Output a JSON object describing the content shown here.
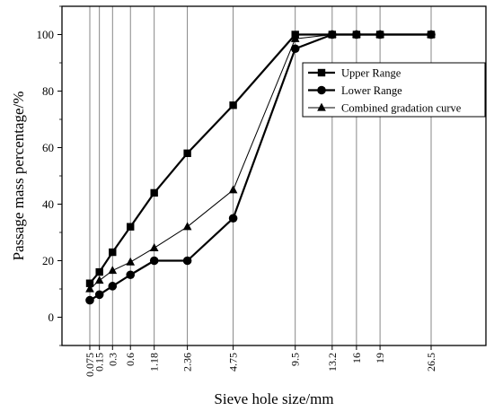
{
  "chart_data": {
    "type": "line",
    "xlabel": "Sieve hole size/mm",
    "ylabel": "Passage mass percentage/%",
    "x": [
      "0.075",
      "0.15",
      "0.3",
      "0.6",
      "1.18",
      "2.36",
      "4.75",
      "9.5",
      "13.2",
      "16",
      "19",
      "26.5"
    ],
    "xscale": "power 0.45 (gradation chart)",
    "ylim": [
      -10,
      110
    ],
    "yticks": [
      0,
      20,
      40,
      60,
      80,
      100
    ],
    "grid": "vertical lines at sieve sizes",
    "legend_position": "right-middle",
    "series": [
      {
        "name": "Upper Range",
        "marker": "square",
        "color": "#000000",
        "values": [
          12,
          16,
          23,
          32,
          44,
          58,
          75,
          100,
          100,
          100,
          100,
          100
        ]
      },
      {
        "name": "Lower Range",
        "marker": "circle",
        "color": "#000000",
        "values": [
          6,
          8,
          11,
          15,
          20,
          20,
          35,
          95,
          100,
          100,
          100,
          100
        ]
      },
      {
        "name": "Combined gradation curve",
        "marker": "triangle",
        "color": "#000000",
        "values": [
          10,
          13,
          16.5,
          19.5,
          24.5,
          32,
          45,
          98.5,
          100,
          100,
          100,
          100
        ]
      }
    ]
  }
}
